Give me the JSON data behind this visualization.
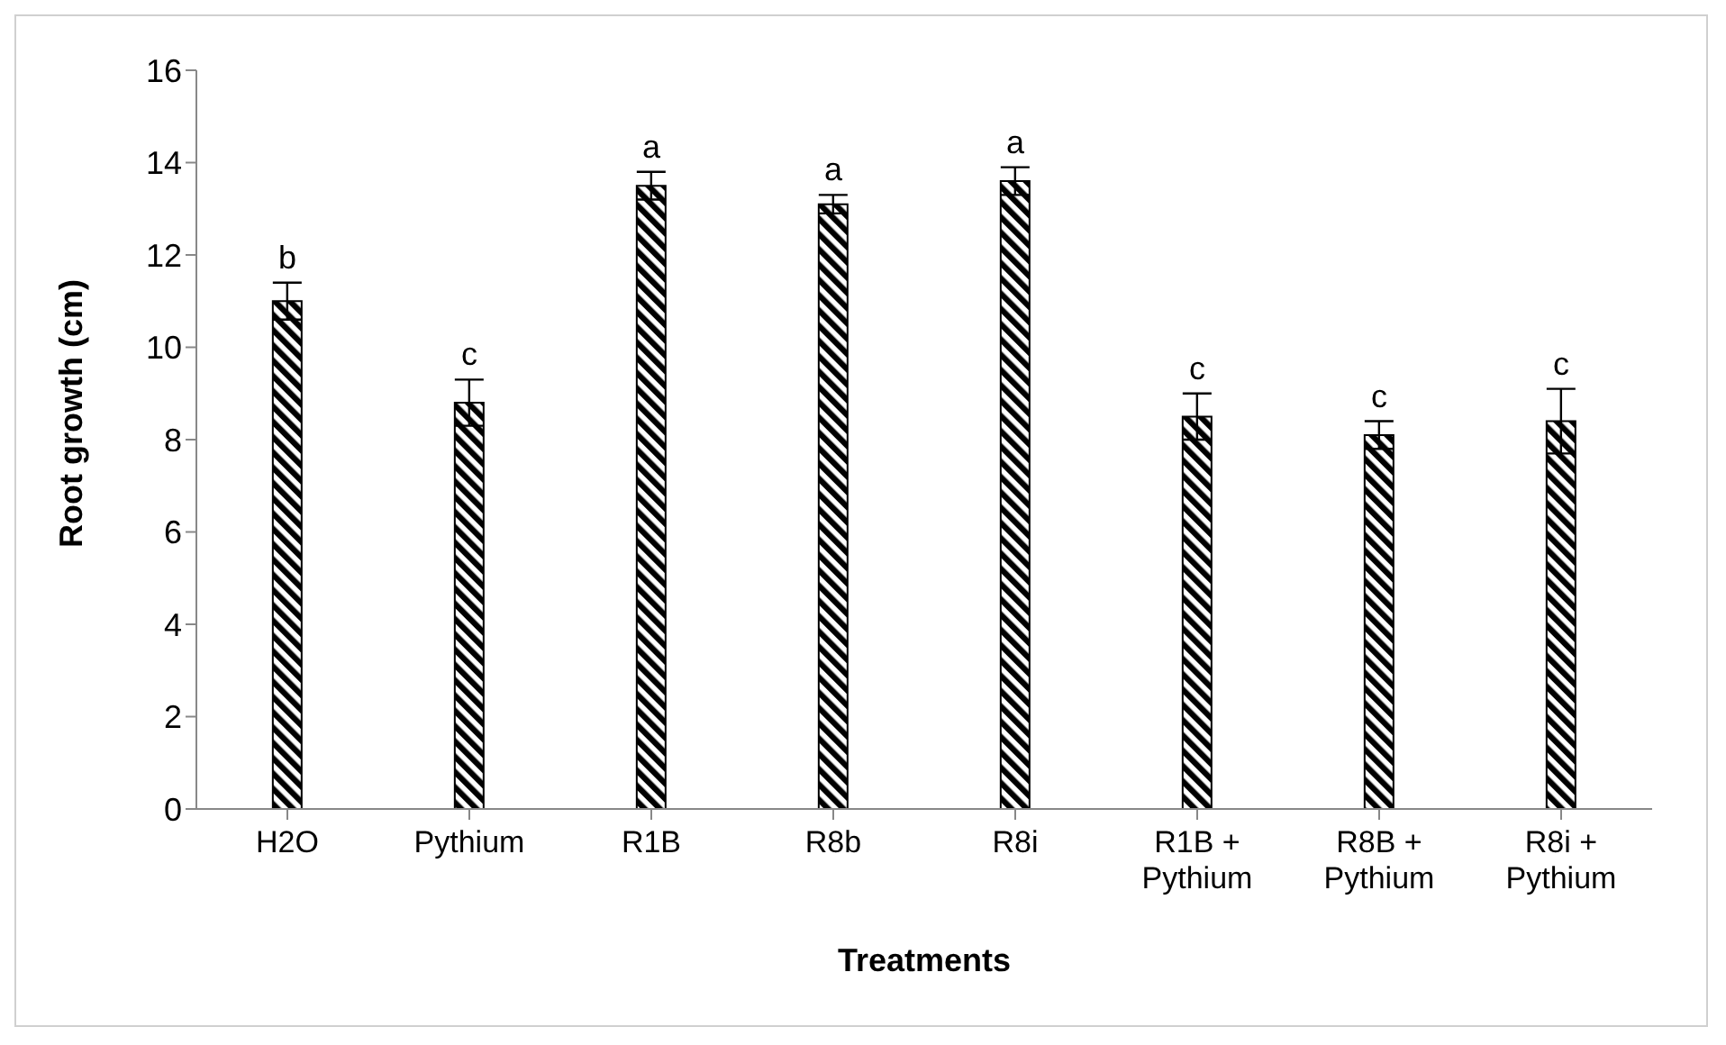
{
  "chart_data": {
    "type": "bar",
    "xlabel": "Treatments",
    "ylabel": "Root growth (cm)",
    "categories": [
      "H2O",
      "Pythium",
      "R1B",
      "R8b",
      "R8i",
      "R1B + Pythium",
      "R8B + Pythium",
      "R8i + Pythium"
    ],
    "values": [
      11.0,
      8.8,
      13.5,
      13.1,
      13.6,
      8.5,
      8.1,
      8.4
    ],
    "errors": [
      0.4,
      0.5,
      0.3,
      0.2,
      0.3,
      0.5,
      0.3,
      0.7
    ],
    "color": "#000000",
    "ylim": [
      0,
      16
    ],
    "yticks": [
      0,
      2,
      4,
      6,
      8,
      10,
      12,
      14,
      16
    ],
    "grid": false,
    "legend": false,
    "annotations": [
      {
        "text": "b",
        "x": "H2O",
        "y": 11.4
      },
      {
        "text": "c",
        "x": "Pythium",
        "y": 9.3
      },
      {
        "text": "a",
        "x": "R1B",
        "y": 13.8
      },
      {
        "text": "a",
        "x": "R8b",
        "y": 13.3
      },
      {
        "text": "a",
        "x": "R8i",
        "y": 13.9
      },
      {
        "text": "c",
        "x": "R1B + Pythium",
        "y": 9.0
      },
      {
        "text": "c",
        "x": "R8B + Pythium",
        "y": 8.4
      },
      {
        "text": "c",
        "x": "R8i + Pythium",
        "y": 9.1
      }
    ]
  }
}
